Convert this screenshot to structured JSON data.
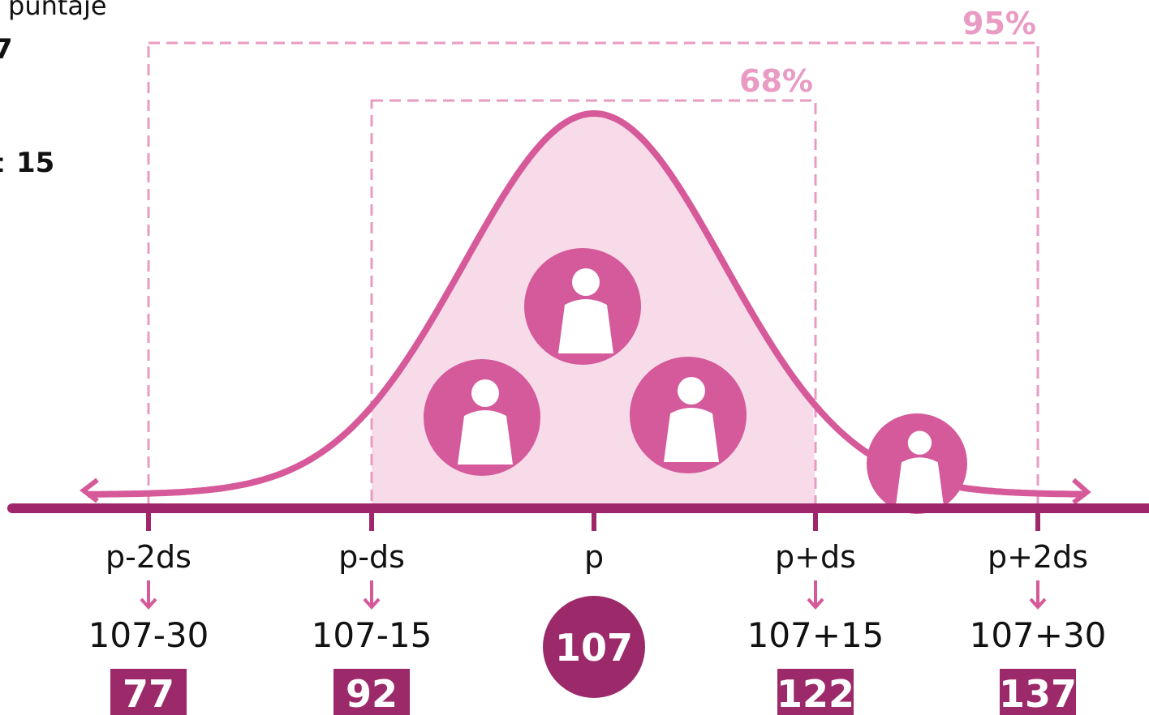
{
  "legend": {
    "line1": "puntaje",
    "line2": "7",
    "line3_prefix": ":",
    "line3_value": "15"
  },
  "ranges": [
    {
      "label": "95%"
    },
    {
      "label": "68%"
    }
  ],
  "positions": [
    {
      "symbol": "p-2ds",
      "formula": "107-30",
      "result": "77"
    },
    {
      "symbol": "p-ds",
      "formula": "107-15",
      "result": "92"
    },
    {
      "symbol": "p",
      "result": "107"
    },
    {
      "symbol": "p+ds",
      "formula": "107+15",
      "result": "122"
    },
    {
      "symbol": "p+2ds",
      "formula": "107+30",
      "result": "137"
    }
  ]
}
